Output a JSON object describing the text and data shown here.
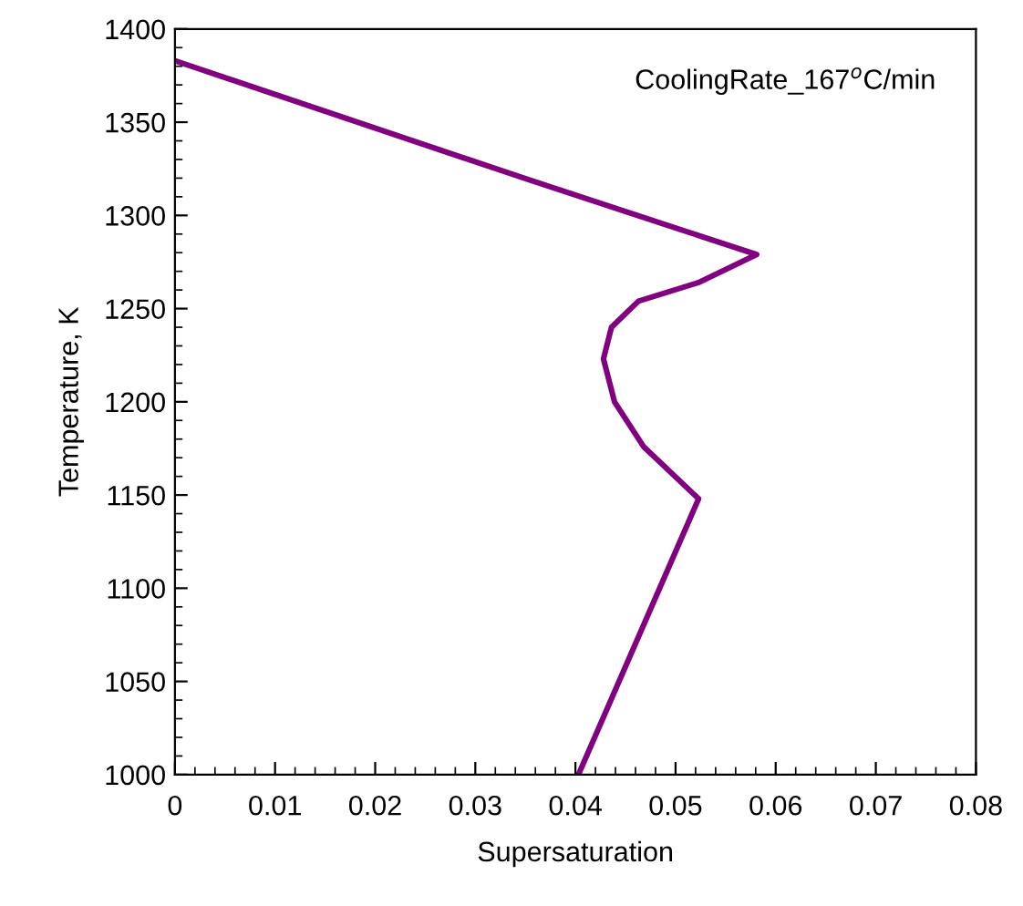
{
  "chart_data": {
    "type": "line",
    "xlabel": "Supersaturation",
    "ylabel": "Temperature, K",
    "annotations": [
      "CoolingRate_167$^{o}$C/min"
    ],
    "series": [
      {
        "color": "#800080",
        "x": [
          0,
          0.0354,
          0.0581,
          0.0523,
          0.0463,
          0.0436,
          0.0428,
          0.0439,
          0.0468,
          0.0523,
          0.0403
        ],
        "values": [
          1383,
          1319,
          1279,
          1264,
          1254,
          1240,
          1223,
          1200,
          1176,
          1148,
          1000
        ]
      }
    ],
    "xlim": [
      0,
      0.08
    ],
    "xticks": [
      0,
      0.01,
      0.02,
      0.03,
      0.04,
      0.05,
      0.06,
      0.07,
      0.08
    ],
    "ylim": [
      1000,
      1400
    ],
    "yticks": [
      1000,
      1050,
      1100,
      1150,
      1200,
      1250,
      1300,
      1350,
      1400
    ],
    "grid": false,
    "legend": false,
    "marker": "none",
    "line_style": "solid"
  }
}
